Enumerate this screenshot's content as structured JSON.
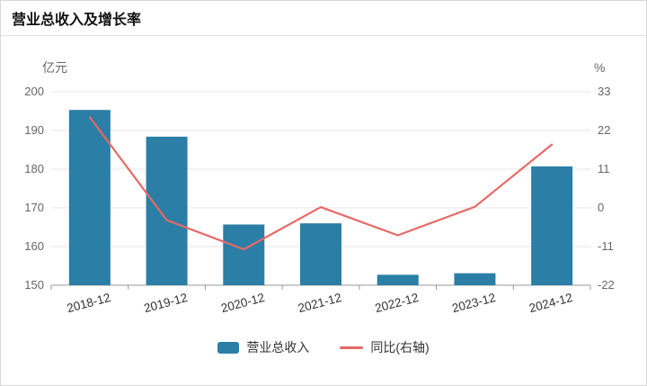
{
  "header": {
    "title": "营业总收入及增长率"
  },
  "chart_data": {
    "type": "bar+line",
    "categories": [
      "2018-12",
      "2019-12",
      "2020-12",
      "2021-12",
      "2022-12",
      "2023-12",
      "2024-12"
    ],
    "series": [
      {
        "name": "营业总收入",
        "type": "bar",
        "axis": "left",
        "values": [
          195.3,
          188.4,
          165.7,
          166.0,
          152.7,
          153.1,
          180.7
        ],
        "color": "#2b7ea6"
      },
      {
        "name": "同比(右轴)",
        "type": "line",
        "axis": "right",
        "values": [
          25.8,
          -3.5,
          -11.8,
          0.2,
          -7.8,
          0.3,
          18.0
        ],
        "color": "#e56a66"
      }
    ],
    "left_axis": {
      "unit": "亿元",
      "min": 150,
      "max": 200,
      "ticks": [
        200,
        190,
        180,
        170,
        160,
        150
      ]
    },
    "right_axis": {
      "unit": "%",
      "min": -22,
      "max": 33,
      "ticks": [
        33,
        22,
        11,
        0,
        -11,
        -22
      ]
    },
    "grid": true,
    "legend_position": "bottom",
    "colors": {
      "gridline": "#e5e5e5",
      "axis_line": "#999999",
      "tick_text": "#666666",
      "unit_text": "#666666",
      "category_text": "#333333"
    }
  },
  "legend": {
    "items": [
      {
        "label": "营业总收入",
        "type": "bar",
        "color": "#2b7ea6"
      },
      {
        "label": "同比(右轴)",
        "type": "line",
        "color": "#e56a66"
      }
    ]
  }
}
